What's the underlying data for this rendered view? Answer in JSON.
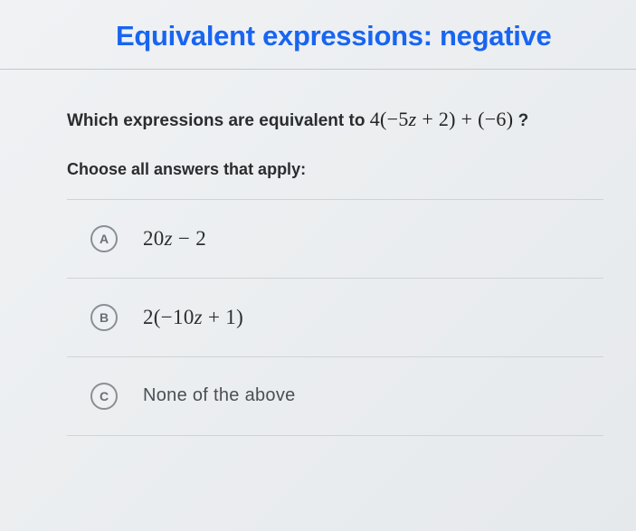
{
  "header": {
    "title": "Equivalent expressions: negative",
    "title_color": "#1865f2",
    "divider_color": "#c5c9cd"
  },
  "question": {
    "prompt_prefix": "Which expressions are equivalent to ",
    "expression": "4(−5z + 2) + (−6)",
    "prompt_suffix": " ?",
    "instruction": "Choose all answers that apply:"
  },
  "choices": [
    {
      "letter": "A",
      "text": "20z − 2",
      "is_math": true
    },
    {
      "letter": "B",
      "text": "2(−10z + 1)",
      "is_math": true
    },
    {
      "letter": "C",
      "text": "None of the above",
      "is_math": false
    }
  ],
  "style": {
    "choice_border_color": "#cfd3d7",
    "letter_border_color": "#8a8f94",
    "background": "#e8ebed",
    "text_color": "#2a2c2e"
  }
}
